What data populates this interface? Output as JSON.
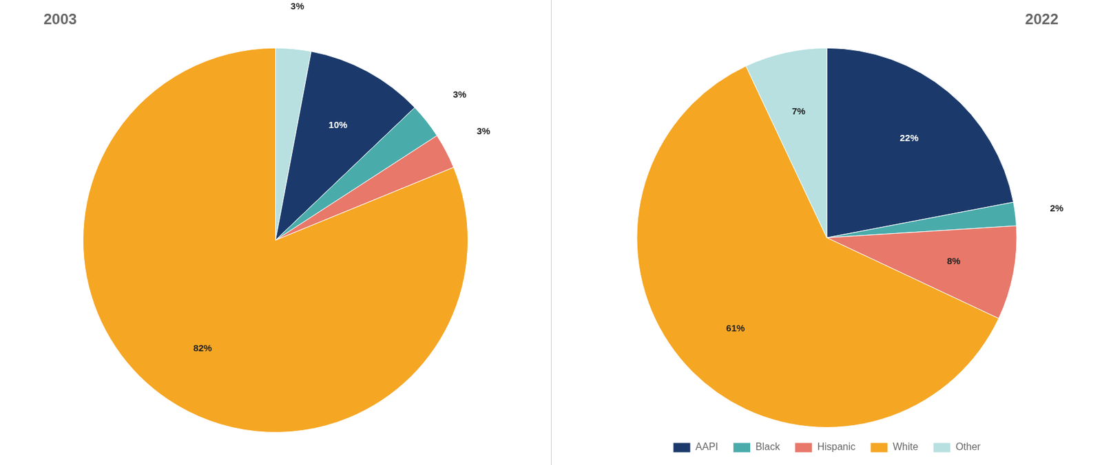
{
  "chart_data": [
    {
      "type": "pie",
      "title": "2003",
      "categories": [
        "Other",
        "AAPI",
        "Black",
        "Hispanic",
        "White"
      ],
      "values": [
        3,
        10,
        3,
        3,
        82
      ],
      "value_labels": [
        "3%",
        "10%",
        "3%",
        "3%",
        "82%"
      ],
      "colors": [
        "#B8E0E0",
        "#1B3A6B",
        "#4AABAB",
        "#E8786A",
        "#F5A623"
      ],
      "data_labels": true
    },
    {
      "type": "pie",
      "title": "2022",
      "categories": [
        "AAPI",
        "Black",
        "Hispanic",
        "White",
        "Other"
      ],
      "values": [
        22,
        2,
        8,
        61,
        7
      ],
      "value_labels": [
        "22%",
        "2%",
        "8%",
        "61%",
        "7%"
      ],
      "colors": [
        "#1B3A6B",
        "#4AABAB",
        "#E8786A",
        "#F5A623",
        "#B8E0E0"
      ],
      "data_labels": true,
      "legend": "bottom"
    }
  ]
}
